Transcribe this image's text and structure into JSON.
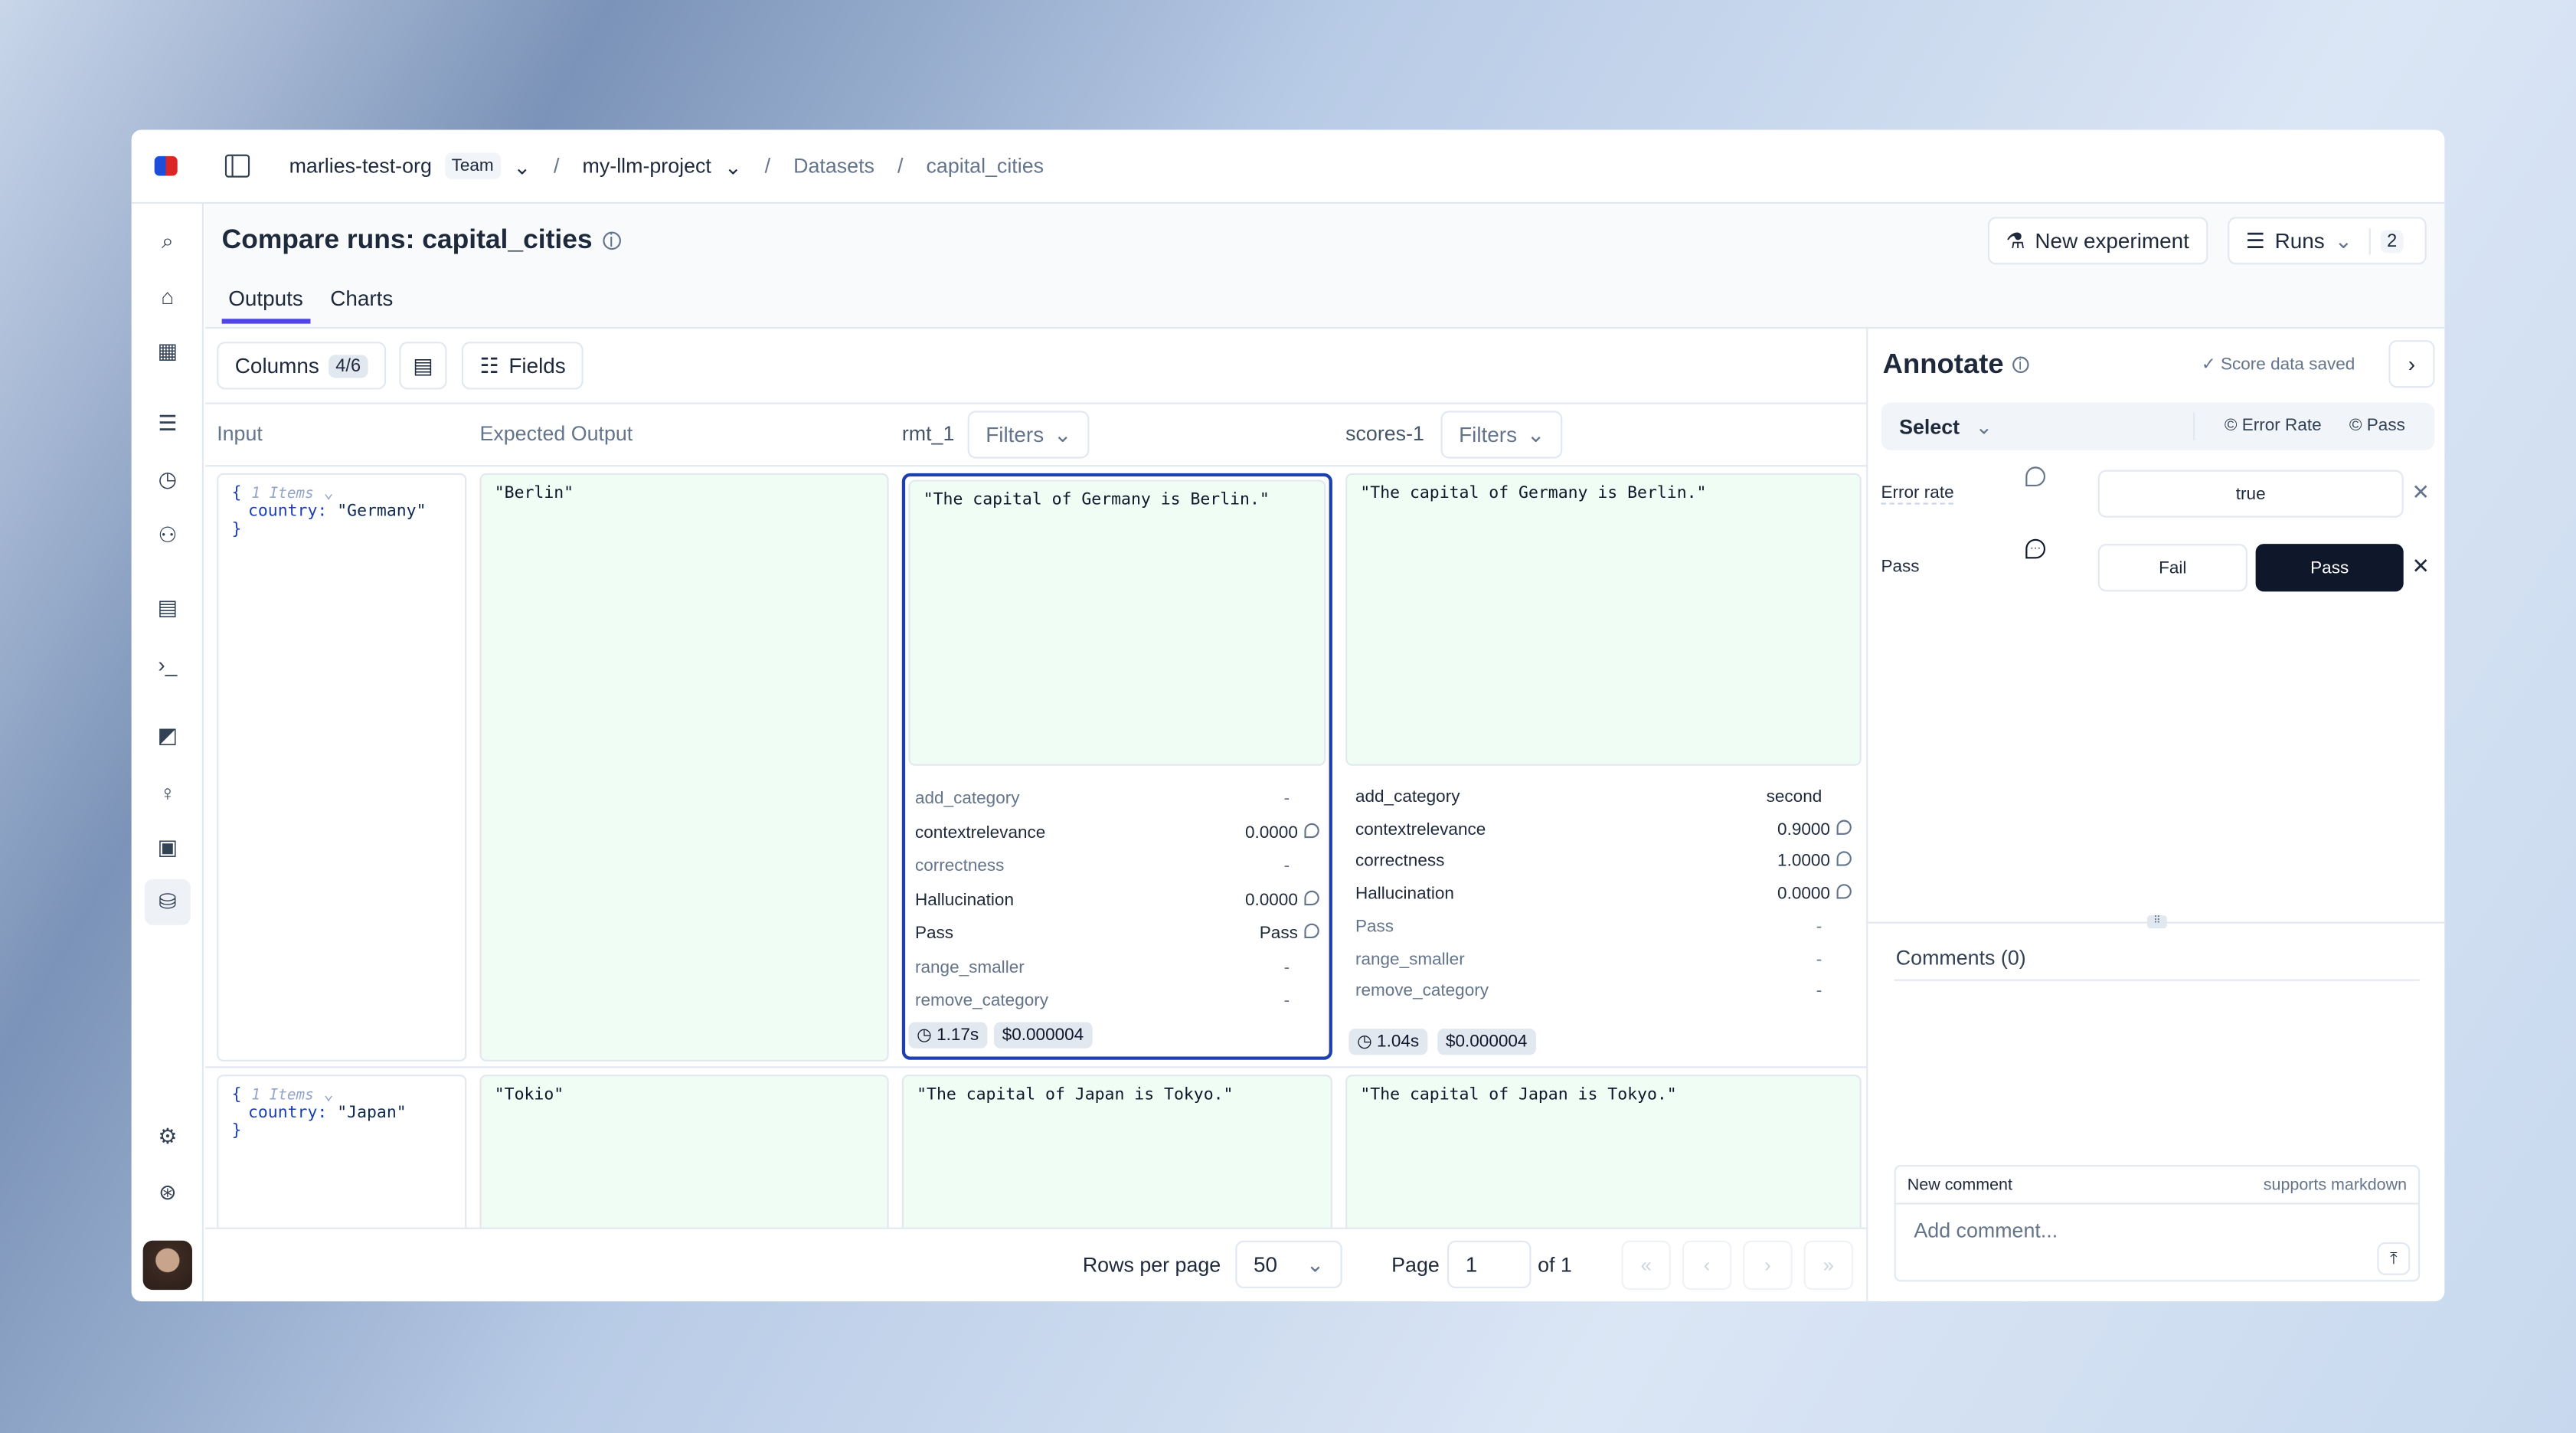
{
  "breadcrumb": {
    "org": "marlies-test-org",
    "org_badge": "Team",
    "project": "my-llm-project",
    "section": "Datasets",
    "dataset": "capital_cities"
  },
  "header": {
    "title": "Compare runs: capital_cities",
    "tabs": [
      {
        "label": "Outputs",
        "active": true
      },
      {
        "label": "Charts",
        "active": false
      }
    ],
    "new_experiment": "New experiment",
    "runs_label": "Runs",
    "runs_count": "2"
  },
  "toolbar": {
    "columns_label": "Columns",
    "columns_count": "4/6",
    "fields_label": "Fields"
  },
  "table": {
    "headers": {
      "input": "Input",
      "expected": "Expected Output",
      "run1": "rmt_1",
      "run2": "scores-1",
      "filters": "Filters"
    },
    "rows": [
      {
        "input_meta": "1 Items",
        "input_key": "country:",
        "input_value": "\"Germany\"",
        "expected": "\"Berlin\"",
        "run1_output": "\"The capital of Germany is Berlin.\"",
        "run2_output": "\"The capital of Germany is Berlin.\"",
        "run1_scores": [
          {
            "name": "add_category",
            "value": "-"
          },
          {
            "name": "contextrelevance",
            "value": "0.0000"
          },
          {
            "name": "correctness",
            "value": "-"
          },
          {
            "name": "Hallucination",
            "value": "0.0000"
          },
          {
            "name": "Pass",
            "value": "Pass"
          },
          {
            "name": "range_smaller",
            "value": "-"
          },
          {
            "name": "remove_category",
            "value": "-"
          }
        ],
        "run2_scores": [
          {
            "name": "add_category",
            "value": "second"
          },
          {
            "name": "contextrelevance",
            "value": "0.9000"
          },
          {
            "name": "correctness",
            "value": "1.0000"
          },
          {
            "name": "Hallucination",
            "value": "0.0000"
          },
          {
            "name": "Pass",
            "value": "-"
          },
          {
            "name": "range_smaller",
            "value": "-"
          },
          {
            "name": "remove_category",
            "value": "-"
          }
        ],
        "run1_duration": "1.17s",
        "run1_cost": "$0.000004",
        "run2_duration": "1.04s",
        "run2_cost": "$0.000004"
      },
      {
        "input_meta": "1 Items",
        "input_key": "country:",
        "input_value": "\"Japan\"",
        "expected": "\"Tokio\"",
        "run1_output": "\"The capital of Japan is Tokyo.\"",
        "run2_output": "\"The capital of Japan is Tokyo.\""
      }
    ]
  },
  "pagination": {
    "rows_per_page_label": "Rows per page",
    "rows_per_page": "50",
    "page_label": "Page",
    "page": "1",
    "of_label": "of 1"
  },
  "annotate": {
    "title": "Annotate",
    "saved": "Score data saved",
    "select": "Select",
    "chips": [
      "Error Rate",
      "Pass"
    ],
    "error_rate_label": "Error rate",
    "error_rate_value": "true",
    "pass_label": "Pass",
    "fail_option": "Fail",
    "pass_option": "Pass",
    "comments_title": "Comments (0)",
    "new_comment": "New comment",
    "markdown_hint": "supports markdown",
    "comment_placeholder": "Add comment..."
  },
  "colors": {
    "accent": "#4f46e5",
    "selected_border": "#1e40af",
    "output_bg": "#f0fdf4",
    "pass_selected": "#0f172a"
  }
}
